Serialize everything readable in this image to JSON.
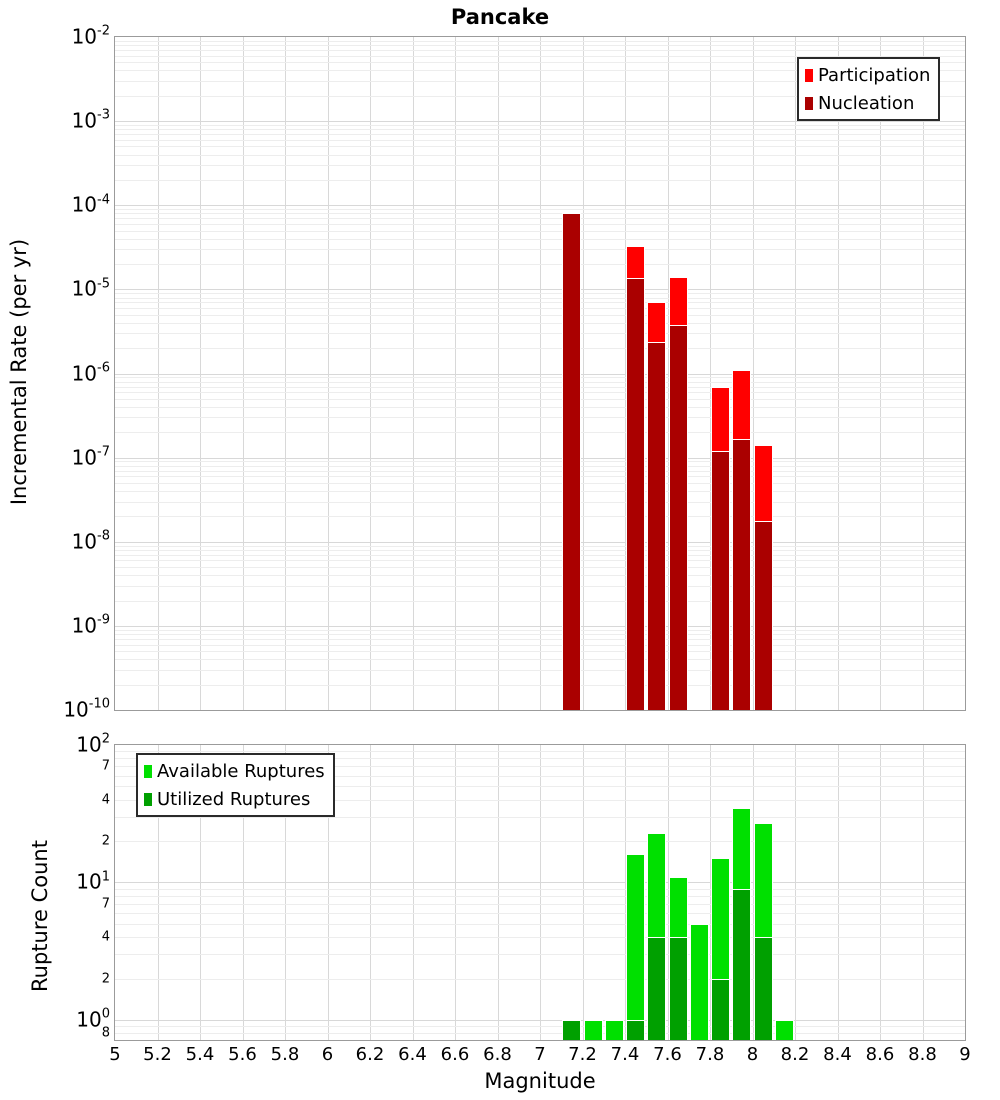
{
  "title": "Pancake",
  "x_axis": {
    "label": "Magnitude",
    "tick_labels": [
      "5",
      "5.2",
      "5.4",
      "5.6",
      "5.8",
      "6",
      "6.2",
      "6.4",
      "6.6",
      "6.8",
      "7",
      "7.2",
      "7.4",
      "7.6",
      "7.8",
      "8",
      "8.2",
      "8.4",
      "8.6",
      "8.8",
      "9"
    ]
  },
  "y_axes": {
    "rate": {
      "label": "Incremental Rate (per yr)",
      "major_exponents": [
        -2,
        -3,
        -4,
        -5,
        -6,
        -7,
        -8,
        -9,
        -10
      ]
    },
    "count": {
      "label": "Rupture Count",
      "major_exponents": [
        2,
        1,
        0
      ],
      "minor_labeled_ticks": [
        {
          "value": 70,
          "label": "7"
        },
        {
          "value": 40,
          "label": "4"
        },
        {
          "value": 20,
          "label": "2"
        },
        {
          "value": 7,
          "label": "7"
        },
        {
          "value": 4,
          "label": "4"
        },
        {
          "value": 2,
          "label": "2"
        },
        {
          "value": 0.8,
          "label": "8"
        }
      ]
    }
  },
  "chart_data": [
    {
      "type": "bar",
      "panel": "incremental-rate",
      "title": "Pancake",
      "xlabel": "Magnitude",
      "ylabel": "Incremental Rate (per yr)",
      "yscale": "log",
      "ylim": [
        1e-10,
        0.01
      ],
      "xlim": [
        5,
        9
      ],
      "grid": true,
      "legend_position": "top-right",
      "bin_width": 0.1,
      "categories": [
        7.15,
        7.45,
        7.55,
        7.65,
        7.85,
        7.95,
        8.05
      ],
      "series": [
        {
          "name": "Participation",
          "color": "#ff0000",
          "values": [
            8.2e-05,
            3.3e-05,
            7e-06,
            1.4e-05,
            6.9e-07,
            1.1e-06,
            1.4e-07
          ]
        },
        {
          "name": "Nucleation",
          "color": "#aa0000",
          "values": [
            8.2e-05,
            1.35e-05,
            2.4e-06,
            3.8e-06,
            1.2e-07,
            1.65e-07,
            1.75e-08
          ]
        }
      ]
    },
    {
      "type": "bar",
      "panel": "rupture-count",
      "xlabel": "Magnitude",
      "ylabel": "Rupture Count",
      "yscale": "log",
      "ylim": [
        0.715,
        100
      ],
      "xlim": [
        5,
        9
      ],
      "grid": true,
      "legend_position": "top-left",
      "bin_width": 0.1,
      "categories": [
        7.15,
        7.25,
        7.35,
        7.45,
        7.55,
        7.65,
        7.75,
        7.85,
        7.95,
        8.05,
        8.15
      ],
      "series": [
        {
          "name": "Available Ruptures",
          "color": "#00e000",
          "values": [
            1,
            1,
            1,
            16,
            23,
            11,
            5,
            15,
            35,
            27,
            1
          ]
        },
        {
          "name": "Utilized Ruptures",
          "color": "#00a000",
          "values": [
            1,
            0,
            0,
            1,
            4,
            4,
            0,
            2,
            9,
            4,
            0
          ]
        }
      ]
    }
  ]
}
